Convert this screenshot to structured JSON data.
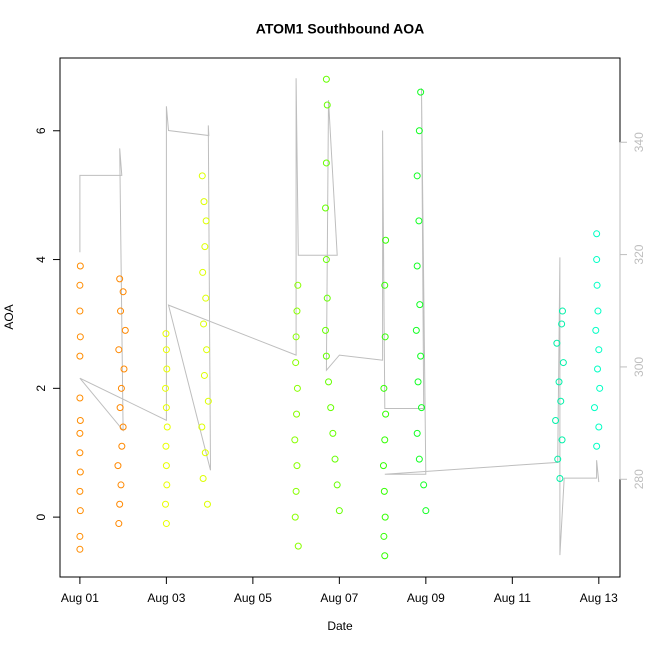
{
  "chart_data": {
    "type": "scatter",
    "title": "ATOM1 Southbound AOA",
    "x_label": "Date",
    "y_label": "AOA",
    "xlim": [
      -0.46,
      12.49
    ],
    "xticks": [
      {
        "value": 0,
        "label": "Aug 01"
      },
      {
        "value": 2,
        "label": "Aug 03"
      },
      {
        "value": 4,
        "label": "Aug 05"
      },
      {
        "value": 6,
        "label": "Aug 07"
      },
      {
        "value": 8,
        "label": "Aug 09"
      },
      {
        "value": 10,
        "label": "Aug 11"
      },
      {
        "value": 12,
        "label": "Aug 13"
      }
    ],
    "ylim": [
      -0.93,
      7.13
    ],
    "yticks": [
      0,
      2,
      4,
      6
    ],
    "y2lim": [
      262.6,
      355
    ],
    "y2ticks": [
      280,
      300,
      320,
      340
    ],
    "series": [
      {
        "type": "line",
        "axis": "y2",
        "color": "#bebebe",
        "x": [
          0,
          0,
          0.97,
          0.92,
          1.0,
          0,
          2.0,
          2.0,
          2.05,
          2.98,
          2.97,
          3.02,
          2.05,
          5.0,
          5.0,
          5.05,
          5.95,
          5.75,
          5.7,
          6.0,
          7.0,
          7.0,
          7.05,
          7.95,
          7.9,
          8.0,
          7.05,
          11.05,
          11.1,
          11.1,
          11.2,
          11.95,
          11.95,
          12.0
        ],
        "values": [
          320.4,
          334.1,
          334.1,
          338.9,
          288.7,
          298.0,
          290.5,
          346.4,
          342.1,
          341.2,
          343.0,
          281.6,
          311.0,
          302.1,
          351.4,
          319.9,
          319.9,
          347.5,
          299.4,
          302.1,
          301.2,
          342.1,
          292.6,
          292.6,
          349.6,
          280.9,
          280.9,
          283.0,
          319.5,
          266.5,
          280.2,
          280.2,
          283.4,
          279.5
        ]
      },
      {
        "color": "#ff8c00",
        "x": [
          0,
          0,
          0.01,
          0,
          0.01,
          0,
          0,
          0.01,
          0,
          0,
          0.01,
          0,
          0,
          0.01
        ],
        "values": [
          -0.5,
          -0.3,
          0.1,
          0.4,
          0.7,
          1.0,
          1.3,
          1.5,
          1.85,
          2.5,
          2.8,
          3.2,
          3.6,
          3.9
        ]
      },
      {
        "color": "#ff8800",
        "x": [
          0.9,
          0.92,
          0.95,
          0.88,
          0.97,
          1.0,
          0.93,
          0.96,
          1.02,
          0.9,
          1.05,
          0.94,
          1.0,
          0.92
        ],
        "values": [
          -0.1,
          0.2,
          0.5,
          0.8,
          1.1,
          1.4,
          1.7,
          2.0,
          2.3,
          2.6,
          2.9,
          3.2,
          3.5,
          3.7
        ]
      },
      {
        "color": "#e8ff00",
        "x": [
          2.0,
          1.98,
          2.01,
          2.0,
          1.99,
          2.02,
          2.0,
          1.98,
          2.01,
          2.0,
          1.99
        ],
        "values": [
          -0.1,
          0.2,
          0.5,
          0.8,
          1.1,
          1.4,
          1.7,
          2.0,
          2.3,
          2.6,
          2.85
        ]
      },
      {
        "color": "#ddff00",
        "x": [
          2.95,
          2.85,
          2.9,
          2.82,
          2.97,
          2.88,
          2.93,
          2.86,
          2.91,
          2.84,
          2.89,
          2.92,
          2.87,
          2.83
        ],
        "values": [
          0.2,
          0.6,
          1.0,
          1.4,
          1.8,
          2.2,
          2.6,
          3.0,
          3.4,
          3.8,
          4.2,
          4.6,
          4.9,
          5.3
        ]
      },
      {
        "color": "#88ff00",
        "x": [
          5.05,
          4.98,
          5.0,
          5.02,
          4.97,
          5.01,
          5.03,
          4.99,
          5.0,
          5.02,
          5.04
        ],
        "values": [
          -0.45,
          0,
          0.4,
          0.8,
          1.2,
          1.6,
          2.0,
          2.4,
          2.8,
          3.2,
          3.6
        ]
      },
      {
        "color": "#66ff00",
        "x": [
          6.0,
          5.95,
          5.9,
          5.85,
          5.8,
          5.75,
          5.7,
          5.68,
          5.72,
          5.7,
          5.68,
          5.7,
          5.72,
          5.7
        ],
        "values": [
          0.1,
          0.5,
          0.9,
          1.3,
          1.7,
          2.1,
          2.5,
          2.9,
          3.4,
          4.0,
          4.8,
          5.5,
          6.4,
          6.8
        ]
      },
      {
        "color": "#33ff00",
        "x": [
          7.05,
          7.03,
          7.06,
          7.04,
          7.02,
          7.05,
          7.07,
          7.03,
          7.06,
          7.05,
          7.07
        ],
        "values": [
          -0.6,
          -0.3,
          0,
          0.4,
          0.8,
          1.2,
          1.6,
          2.0,
          2.8,
          3.6,
          4.3
        ]
      },
      {
        "color": "#11ff22",
        "x": [
          8.0,
          7.95,
          7.85,
          7.8,
          7.9,
          7.82,
          7.88,
          7.78,
          7.86,
          7.8,
          7.84,
          7.8,
          7.85,
          7.88
        ],
        "values": [
          0.1,
          0.5,
          0.9,
          1.3,
          1.7,
          2.1,
          2.5,
          2.9,
          3.3,
          3.9,
          4.6,
          5.3,
          6.0,
          6.6
        ]
      },
      {
        "color": "#00f0a8",
        "x": [
          11.1,
          11.05,
          11.15,
          11.0,
          11.12,
          11.08,
          11.18,
          11.03,
          11.14,
          11.16
        ],
        "values": [
          0.6,
          0.9,
          1.2,
          1.5,
          1.8,
          2.1,
          2.4,
          2.7,
          3.0,
          3.2
        ]
      },
      {
        "color": "#00ffc4",
        "x": [
          11.95,
          12.0,
          11.9,
          12.02,
          11.97,
          12.0,
          11.93,
          11.98,
          11.96,
          11.95,
          11.95
        ],
        "values": [
          1.1,
          1.4,
          1.7,
          2.0,
          2.3,
          2.6,
          2.9,
          3.2,
          3.6,
          4.0,
          4.4
        ]
      }
    ]
  }
}
